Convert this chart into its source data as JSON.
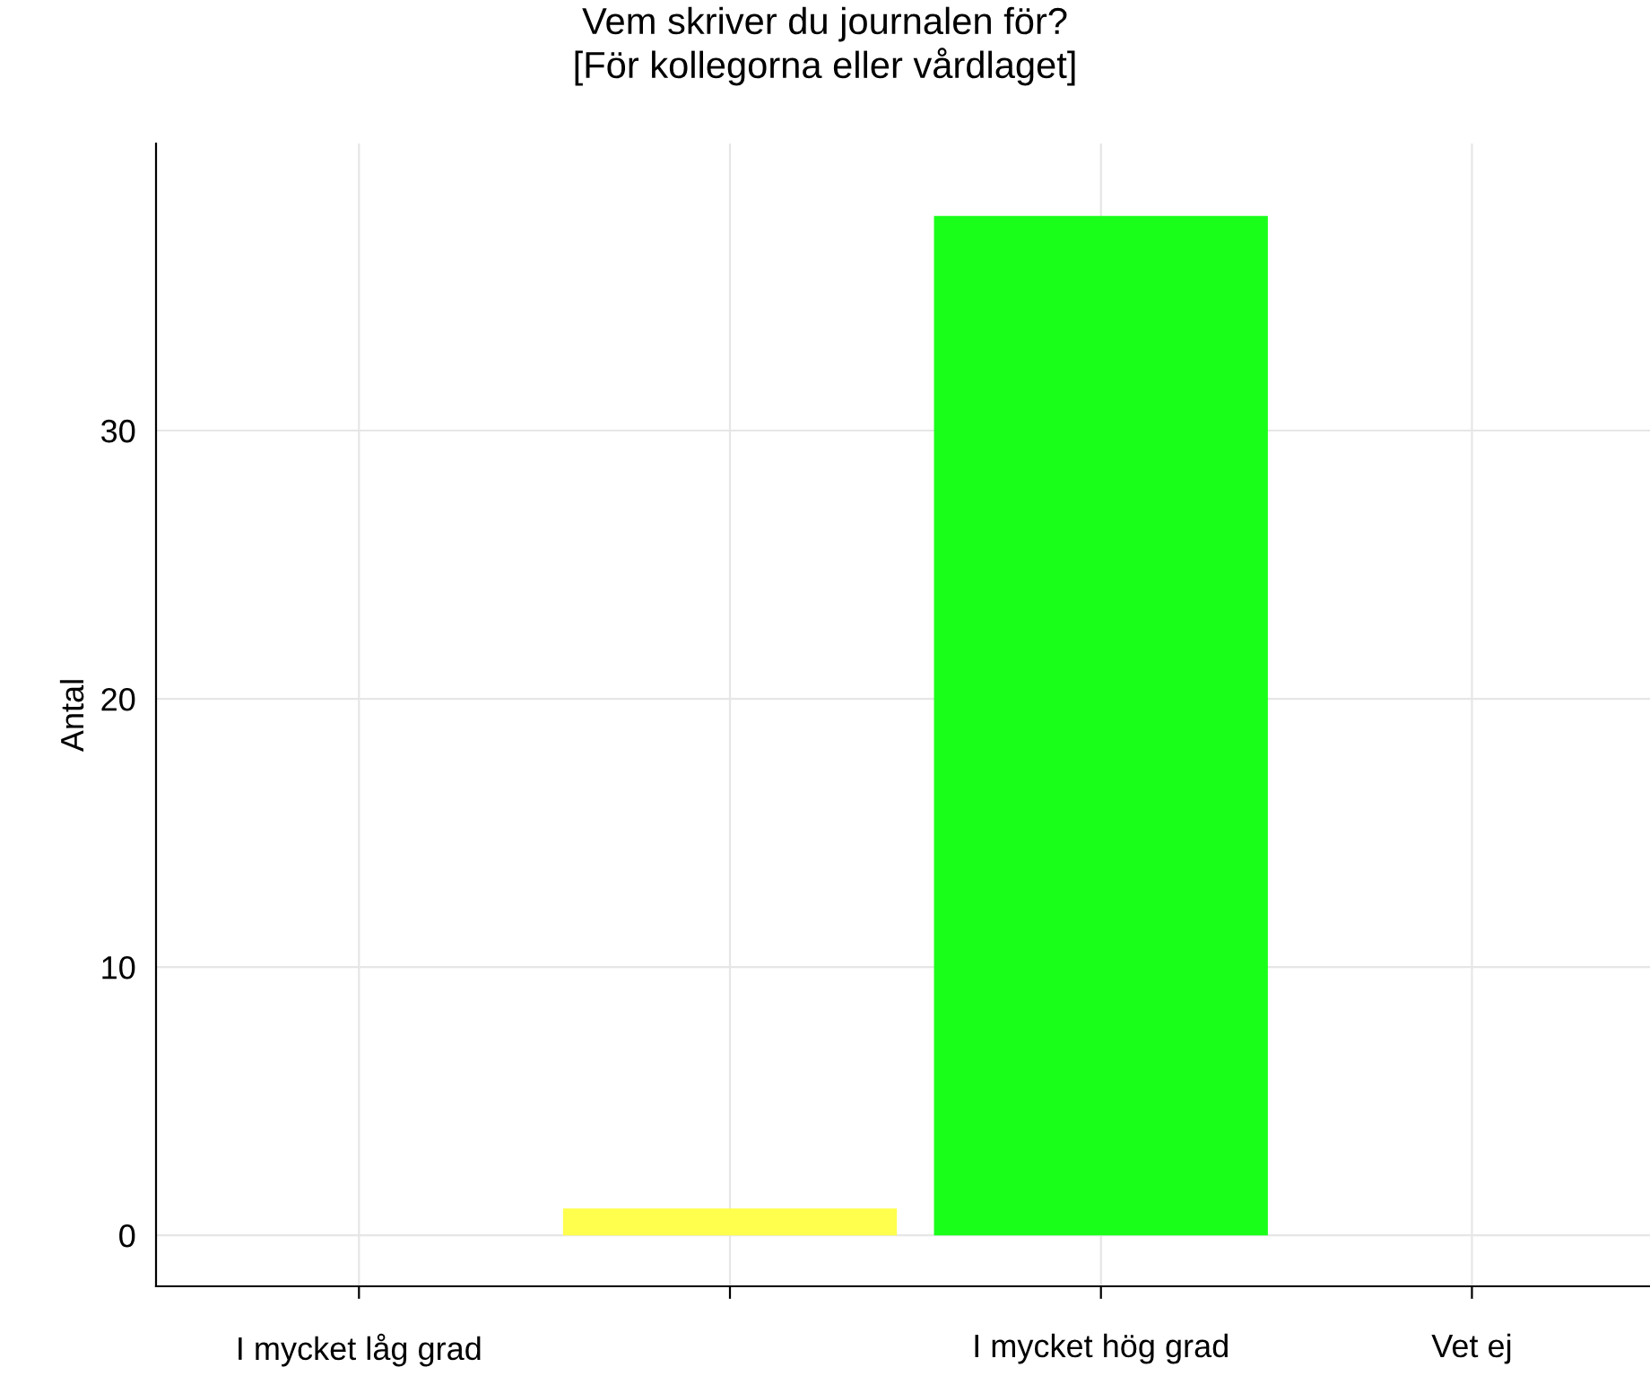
{
  "chart_data": {
    "type": "bar",
    "title": "Vem skriver du journalen för?\n[För kollegorna eller vårdlaget]",
    "ylabel": "Antal",
    "categories": [
      "I mycket låg grad",
      null,
      "I mycket hög grad",
      "Vet ej"
    ],
    "values": [
      0,
      1,
      38,
      0
    ],
    "colors": [
      "#ff2020",
      "#ffff4d",
      "#1aff1a",
      "#b0b0b0"
    ],
    "ylim": [
      -1.9,
      40.7
    ],
    "yticks": [
      0,
      10,
      20,
      30
    ],
    "grid": true,
    "legend": false
  }
}
